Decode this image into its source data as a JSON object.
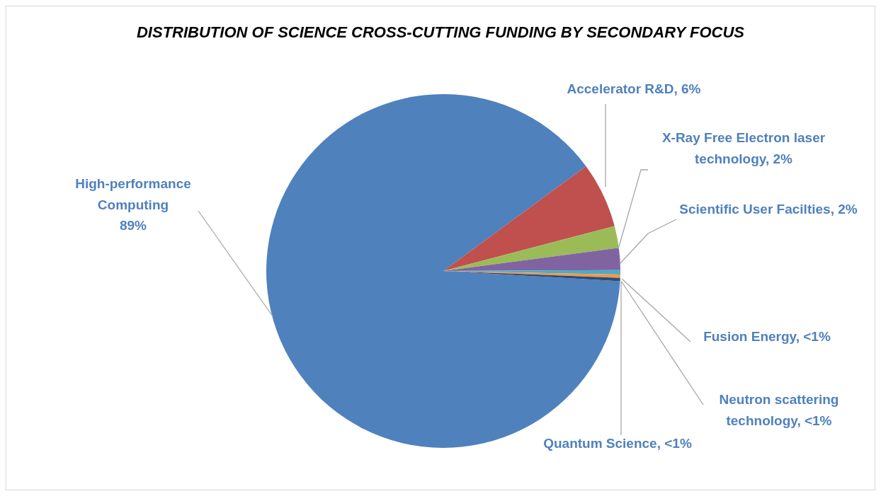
{
  "chart_data": {
    "type": "pie",
    "title": "DISTRIBUTION OF SCIENCE CROSS-CUTTING FUNDING BY SECONDARY FOCUS",
    "categories": [
      "High-performance Computing",
      "Accelerator R&D",
      "X-Ray Free Electron laser technology",
      "Scientific User Facilties",
      "Fusion Energy",
      "Neutron scattering technology",
      "Quantum Science"
    ],
    "values": [
      89,
      6,
      2,
      2,
      0.4,
      0.3,
      0.3
    ],
    "value_labels": [
      "89%",
      "6%",
      "2%",
      "2%",
      "<1%",
      "<1%",
      "<1%"
    ],
    "colors": [
      "#4f81bd",
      "#c0504d",
      "#9bbb59",
      "#8064a2",
      "#4bacc6",
      "#f79646",
      "#2c4d75"
    ]
  }
}
